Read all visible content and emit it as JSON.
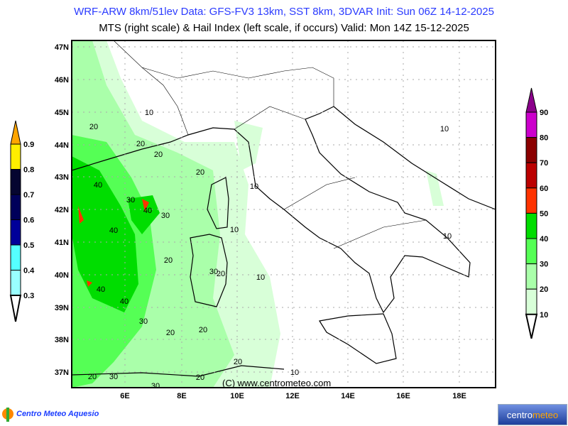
{
  "header": {
    "line1": "WRF-ARW 8km/51lev  Data: GFS-FV3 13km, SST 8km, 3DVAR   Init: Sun 06Z 14-12-2025",
    "line2": "MTS (right scale) & Hail Index (left scale, if occurs) Valid: Mon 14Z 15-12-2025"
  },
  "map": {
    "lat_labels": [
      "47N",
      "46N",
      "45N",
      "44N",
      "43N",
      "42N",
      "41N",
      "40N",
      "39N",
      "38N",
      "37N"
    ],
    "lon_labels": [
      "6E",
      "8E",
      "10E",
      "12E",
      "14E",
      "16E",
      "18E"
    ],
    "copyright": "(C) www.centrometeo.com",
    "contour_labels": [
      "10",
      "20",
      "20",
      "20",
      "20",
      "40",
      "30",
      "40",
      "30",
      "40",
      "20",
      "10",
      "10",
      "30",
      "20",
      "10",
      "40",
      "40",
      "20",
      "30",
      "20",
      "20",
      "30",
      "30",
      "20",
      "10",
      "10",
      "20",
      "10"
    ]
  },
  "hail_scale": {
    "labels": [
      "0.9",
      "0.8",
      "0.7",
      "0.6",
      "0.5",
      "0.4",
      "0.3"
    ],
    "colors": [
      "#ffa500",
      "#ffee00",
      "#050530",
      "#00005a",
      "#000099",
      "#55ffff",
      "#99ffff"
    ]
  },
  "mts_scale": {
    "labels": [
      "90",
      "80",
      "70",
      "60",
      "50",
      "40",
      "30",
      "20",
      "10"
    ],
    "colors": [
      "#8b008b",
      "#cc00cc",
      "#8b0000",
      "#bb0000",
      "#ff3300",
      "#00dd00",
      "#55ff55",
      "#aaffaa",
      "#d8ffd8"
    ]
  },
  "logos": {
    "left": "Centro Meteo Aquesio",
    "right_a": "centro",
    "right_b": "meteo"
  }
}
